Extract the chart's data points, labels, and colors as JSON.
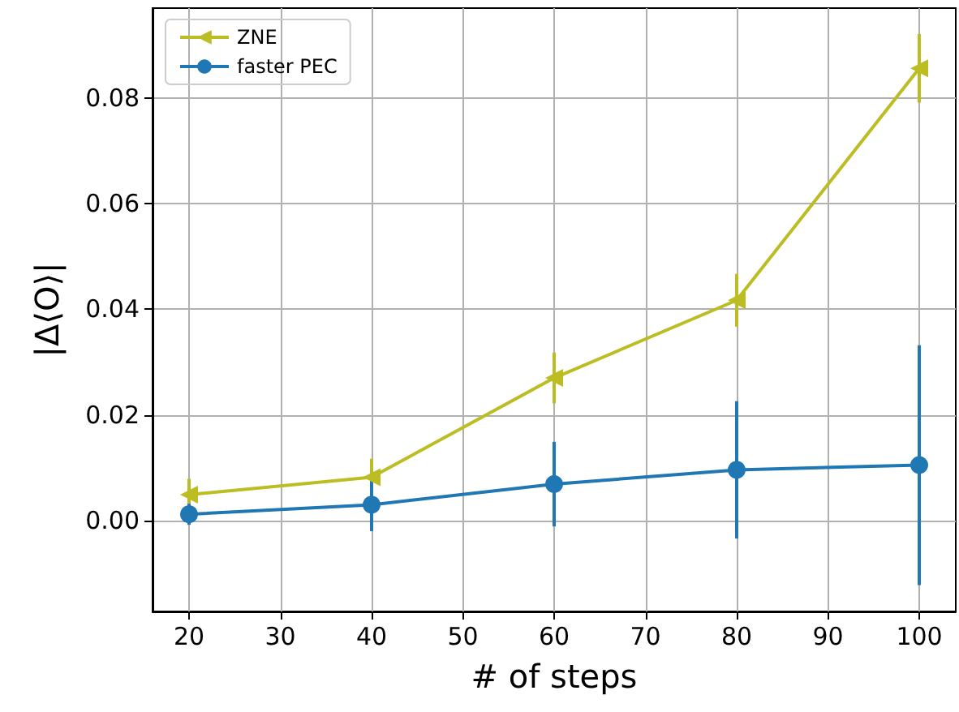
{
  "chart_data": {
    "type": "line",
    "xlabel": "# of steps",
    "ylabel": "|Δ⟨O⟩|",
    "x": [
      20,
      40,
      60,
      80,
      100
    ],
    "series": [
      {
        "name": "ZNE",
        "color": "#bcbd22",
        "marker": "triangle",
        "values": [
          0.0049,
          0.0082,
          0.027,
          0.0417,
          0.0856
        ],
        "errors": [
          0.003,
          0.0035,
          0.0048,
          0.005,
          0.0065
        ]
      },
      {
        "name": "faster PEC",
        "color": "#1f77b4",
        "marker": "circle",
        "values": [
          0.0012,
          0.003,
          0.0069,
          0.0096,
          0.0105
        ],
        "errors": [
          0.002,
          0.005,
          0.008,
          0.013,
          0.0227
        ]
      }
    ],
    "xlim": [
      16,
      104
    ],
    "ylim": [
      -0.0172,
      0.097
    ],
    "xticks": [
      20,
      30,
      40,
      50,
      60,
      70,
      80,
      90,
      100
    ],
    "yticks": [
      {
        "value": 0,
        "label": "0.00"
      },
      {
        "value": 0.02,
        "label": "0.02"
      },
      {
        "value": 0.04,
        "label": "0.04"
      },
      {
        "value": 0.06,
        "label": "0.06"
      },
      {
        "value": 0.08,
        "label": "0.08"
      }
    ],
    "grid": true,
    "legend": "top left",
    "line_style": "solid"
  }
}
